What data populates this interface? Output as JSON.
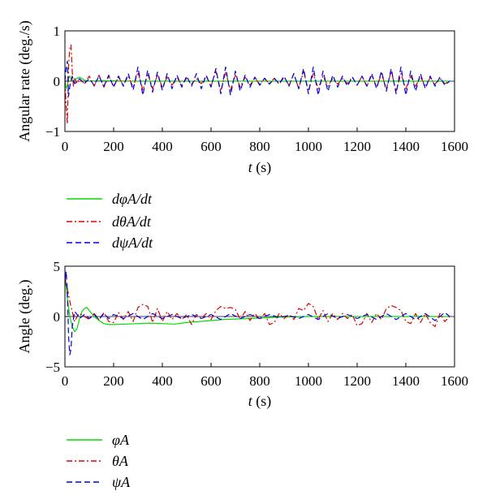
{
  "chart_data": [
    {
      "type": "line",
      "ylabel": "Angular rate (deg./s)",
      "xlabel": "t (s)",
      "xlim": [
        0,
        1600
      ],
      "ylim": [
        -1,
        1
      ],
      "xticks": [
        0,
        200,
        400,
        600,
        800,
        1000,
        1200,
        1400,
        1600
      ],
      "yticks": [
        -1,
        0,
        1
      ],
      "legend": "below",
      "series": [
        {
          "name": "dφA/dt",
          "color": "#00dd00",
          "style": "solid",
          "x": [
            0,
            5,
            10,
            15,
            20,
            25,
            30,
            40,
            50,
            60,
            70,
            80,
            100,
            150,
            300,
            600,
            1000,
            1400,
            1580
          ],
          "y": [
            0,
            -0.15,
            -0.08,
            0.05,
            0.1,
            0.05,
            0.02,
            0.03,
            0.06,
            0.08,
            0.05,
            0.02,
            0.0,
            0.01,
            0.0,
            0.0,
            0.0,
            0.0,
            0.0
          ]
        },
        {
          "name": "dθA/dt",
          "color": "#dd0000",
          "style": "dashdot",
          "x": [
            0,
            5,
            10,
            15,
            20,
            25,
            30,
            35,
            40,
            50,
            60,
            80,
            100,
            120,
            140,
            160,
            180,
            200,
            220,
            240,
            260,
            280,
            300,
            320,
            340,
            360,
            380,
            400,
            420,
            440,
            460,
            480,
            500,
            520,
            540,
            560,
            580,
            600,
            620,
            640,
            660,
            680,
            700,
            720,
            740,
            760,
            780,
            800,
            820,
            840,
            860,
            880,
            900,
            920,
            940,
            960,
            980,
            1000,
            1020,
            1040,
            1060,
            1080,
            1100,
            1120,
            1140,
            1160,
            1180,
            1200,
            1220,
            1240,
            1260,
            1280,
            1300,
            1320,
            1340,
            1360,
            1380,
            1400,
            1420,
            1440,
            1460,
            1480,
            1500,
            1520,
            1540,
            1560,
            1580
          ],
          "y": [
            0,
            -0.5,
            -0.85,
            0.3,
            0.65,
            0.72,
            0.2,
            -0.1,
            0.05,
            -0.05,
            0.05,
            -0.05,
            0.1,
            -0.1,
            0.12,
            -0.12,
            0.1,
            -0.1,
            0.08,
            -0.08,
            0.1,
            -0.12,
            0.18,
            -0.18,
            0.15,
            -0.15,
            0.12,
            -0.12,
            0.08,
            -0.08,
            0.08,
            -0.08,
            0.06,
            -0.06,
            0.05,
            -0.05,
            0.1,
            -0.1,
            0.2,
            -0.2,
            0.18,
            -0.18,
            0.12,
            -0.12,
            0.08,
            -0.08,
            0.06,
            -0.06,
            0.05,
            -0.05,
            0.06,
            -0.06,
            0.08,
            -0.08,
            0.15,
            -0.15,
            0.2,
            -0.2,
            0.15,
            -0.15,
            0.1,
            -0.1,
            0.06,
            -0.06,
            0.05,
            -0.05,
            0.08,
            -0.08,
            0.1,
            -0.1,
            0.12,
            -0.12,
            0.15,
            -0.15,
            0.2,
            -0.2,
            0.15,
            -0.15,
            0.1,
            -0.1,
            0.08,
            -0.08,
            0.06,
            -0.06,
            0.05,
            -0.05,
            0.0
          ]
        },
        {
          "name": "dψA/dt",
          "color": "#0000dd",
          "style": "dashed",
          "x": [
            0,
            5,
            10,
            15,
            20,
            30,
            40,
            60,
            80,
            100,
            120,
            140,
            160,
            180,
            200,
            220,
            240,
            260,
            280,
            300,
            320,
            340,
            360,
            380,
            400,
            420,
            440,
            460,
            480,
            500,
            520,
            540,
            560,
            580,
            600,
            620,
            640,
            660,
            680,
            700,
            720,
            740,
            760,
            780,
            800,
            820,
            840,
            860,
            880,
            900,
            920,
            940,
            960,
            980,
            1000,
            1020,
            1040,
            1060,
            1080,
            1100,
            1120,
            1140,
            1160,
            1180,
            1200,
            1220,
            1240,
            1260,
            1280,
            1300,
            1320,
            1340,
            1360,
            1380,
            1400,
            1420,
            1440,
            1460,
            1480,
            1500,
            1520,
            1540,
            1560,
            1580
          ],
          "y": [
            0,
            0.25,
            0.4,
            -0.3,
            -0.1,
            0.1,
            -0.05,
            0.05,
            -0.05,
            0.05,
            -0.08,
            0.1,
            -0.1,
            0.12,
            -0.12,
            0.1,
            -0.1,
            0.15,
            -0.18,
            0.28,
            -0.28,
            0.22,
            -0.22,
            0.18,
            -0.18,
            0.15,
            -0.15,
            0.12,
            -0.12,
            0.1,
            -0.1,
            0.15,
            -0.15,
            0.12,
            -0.12,
            0.25,
            -0.25,
            0.28,
            -0.28,
            0.2,
            -0.2,
            0.12,
            -0.12,
            0.08,
            -0.08,
            0.06,
            -0.06,
            0.05,
            -0.05,
            0.1,
            -0.1,
            0.15,
            -0.15,
            0.25,
            -0.25,
            0.28,
            -0.28,
            0.2,
            -0.2,
            0.12,
            -0.12,
            0.1,
            -0.1,
            0.08,
            -0.08,
            0.1,
            -0.1,
            0.15,
            -0.15,
            0.2,
            -0.2,
            0.25,
            -0.25,
            0.28,
            -0.28,
            0.2,
            -0.2,
            0.15,
            -0.15,
            0.1,
            -0.1,
            0.08,
            -0.08,
            0.0
          ]
        }
      ]
    },
    {
      "type": "line",
      "ylabel": "Angle (deg.)",
      "xlabel": "t (s)",
      "xlim": [
        0,
        1600
      ],
      "ylim": [
        -5,
        5
      ],
      "xticks": [
        0,
        200,
        400,
        600,
        800,
        1000,
        1200,
        1400,
        1600
      ],
      "yticks": [
        -5,
        0,
        5
      ],
      "legend": "below",
      "series": [
        {
          "name": "φA",
          "color": "#00dd00",
          "style": "solid",
          "x": [
            0,
            5,
            10,
            20,
            30,
            40,
            50,
            60,
            70,
            80,
            90,
            100,
            120,
            140,
            160,
            180,
            200,
            250,
            300,
            350,
            400,
            450,
            500,
            550,
            600,
            650,
            700,
            750,
            800,
            850,
            900,
            1000,
            1200,
            1400,
            1580
          ],
          "y": [
            4.0,
            3.0,
            1.8,
            0.0,
            -1.0,
            -1.5,
            -1.2,
            -0.2,
            0.5,
            0.8,
            0.9,
            0.6,
            0.0,
            -0.4,
            -0.7,
            -0.8,
            -0.8,
            -0.75,
            -0.7,
            -0.65,
            -0.7,
            -0.75,
            -0.6,
            -0.5,
            -0.4,
            -0.3,
            -0.25,
            -0.2,
            -0.15,
            -0.1,
            -0.05,
            0.0,
            0.0,
            0.0,
            0.0
          ]
        },
        {
          "name": "θA",
          "color": "#dd0000",
          "style": "dashdot",
          "x": [
            0,
            5,
            10,
            20,
            30,
            40,
            50,
            60,
            80,
            100,
            120,
            140,
            160,
            180,
            200,
            220,
            240,
            260,
            280,
            300,
            320,
            340,
            360,
            380,
            400,
            420,
            440,
            460,
            480,
            500,
            520,
            540,
            560,
            580,
            600,
            620,
            640,
            660,
            680,
            700,
            720,
            740,
            760,
            780,
            800,
            820,
            840,
            860,
            880,
            900,
            920,
            940,
            960,
            980,
            1000,
            1020,
            1040,
            1060,
            1080,
            1100,
            1120,
            1140,
            1160,
            1180,
            1200,
            1220,
            1240,
            1260,
            1280,
            1300,
            1320,
            1340,
            1360,
            1380,
            1400,
            1420,
            1440,
            1460,
            1480,
            1500,
            1520,
            1540,
            1560,
            1580
          ],
          "y": [
            4.0,
            3.2,
            2.8,
            1.5,
            0.5,
            -0.5,
            0.0,
            0.3,
            0.0,
            -0.3,
            0.3,
            -0.3,
            0.4,
            -0.5,
            -0.6,
            0.4,
            -0.3,
            0.5,
            -0.5,
            0.9,
            1.2,
            1.0,
            -0.6,
            0.8,
            -0.5,
            0.5,
            -0.3,
            0.3,
            -0.3,
            0.2,
            -0.8,
            0.2,
            -0.2,
            0.3,
            -0.3,
            0.6,
            1.0,
            0.8,
            0.9,
            0.7,
            -0.3,
            0.5,
            -0.4,
            0.3,
            -0.3,
            0.3,
            -0.8,
            -0.6,
            0.3,
            -0.2,
            0.2,
            -0.3,
            0.8,
            0.6,
            1.3,
            1.0,
            -0.3,
            0.6,
            -0.5,
            0.3,
            -0.3,
            0.3,
            -0.2,
            0.2,
            -0.9,
            -0.7,
            0.3,
            -0.6,
            0.3,
            -0.3,
            0.8,
            1.1,
            0.9,
            0.6,
            -0.5,
            -0.7,
            0.3,
            -0.6,
            0.3,
            -0.6,
            -1.0,
            0.3,
            -0.5,
            0.0
          ]
        },
        {
          "name": "ψA",
          "color": "#0000dd",
          "style": "dashed",
          "x": [
            0,
            5,
            10,
            15,
            20,
            25,
            30,
            40,
            50,
            60,
            80,
            100,
            120,
            140,
            160,
            180,
            200,
            240,
            280,
            320,
            360,
            400,
            440,
            480,
            520,
            560,
            600,
            640,
            680,
            720,
            760,
            800,
            840,
            880,
            920,
            960,
            1000,
            1040,
            1080,
            1120,
            1160,
            1200,
            1240,
            1280,
            1320,
            1360,
            1400,
            1440,
            1480,
            1520,
            1560,
            1580
          ],
          "y": [
            3.0,
            4.5,
            2.5,
            -2.0,
            -3.8,
            -3.2,
            -1.0,
            0.5,
            0.2,
            -0.2,
            0.2,
            -0.2,
            0.2,
            -0.3,
            0.3,
            -0.2,
            0.2,
            -0.2,
            0.3,
            -0.3,
            0.3,
            -0.2,
            0.2,
            -0.2,
            0.2,
            -0.2,
            0.2,
            -0.3,
            0.3,
            -0.2,
            0.2,
            -0.2,
            0.2,
            -0.1,
            0.1,
            -0.2,
            0.2,
            -0.3,
            0.3,
            -0.2,
            0.2,
            -0.2,
            0.2,
            -0.3,
            0.3,
            -0.3,
            0.3,
            -0.3,
            0.3,
            -0.4,
            0.4,
            0.0
          ]
        }
      ]
    }
  ]
}
